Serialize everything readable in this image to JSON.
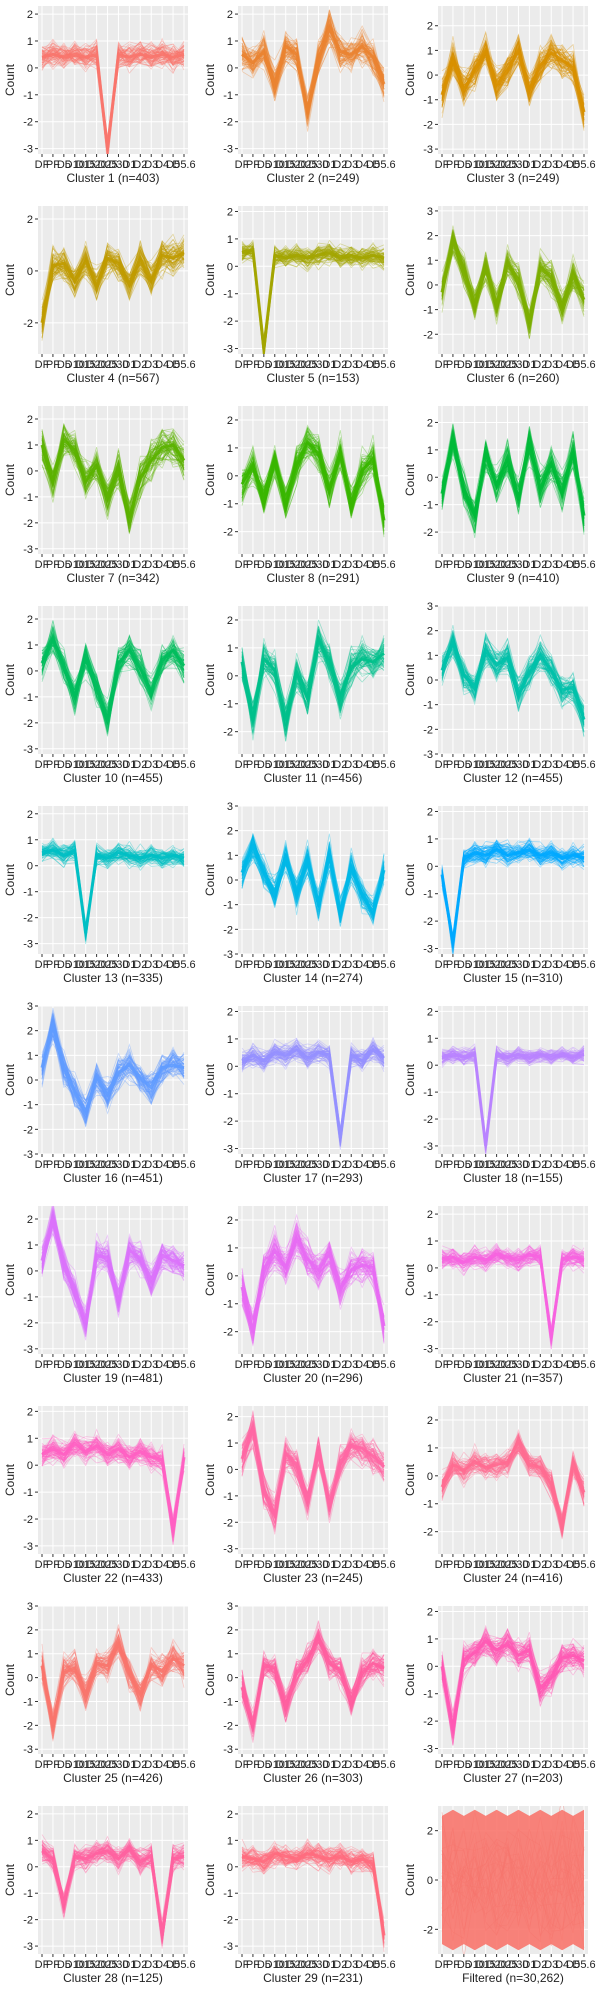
{
  "y_axis_label": "Count",
  "x_tick_labels": [
    "DF",
    "PF",
    "D5",
    "D10",
    "D15",
    "D20",
    "D25",
    "D30",
    "D1",
    "D2",
    "D3",
    "D4",
    "D5",
    "D5.6"
  ],
  "chart_data": [
    {
      "type": "line",
      "title": "Cluster 1 (n=403)",
      "ylabel": "Count",
      "color": "#F8766D",
      "ylim": [
        -3.2,
        2.3
      ],
      "yticks": [
        -3,
        -2,
        -1,
        0,
        1,
        2
      ],
      "profile": [
        0.4,
        0.5,
        0.4,
        0.5,
        0.4,
        0.5,
        -3.0,
        0.5,
        0.4,
        0.5,
        0.4,
        0.5,
        0.4,
        0.5
      ],
      "spread": 0.6
    },
    {
      "type": "line",
      "title": "Cluster 2 (n=249)",
      "ylabel": "Count",
      "color": "#EA8331",
      "ylim": [
        -3.2,
        2.3
      ],
      "yticks": [
        -3,
        -2,
        -1,
        0,
        1,
        2
      ],
      "profile": [
        0.5,
        0.2,
        0.6,
        -0.6,
        0.8,
        0.5,
        -1.6,
        0.3,
        1.5,
        0.6,
        0.5,
        0.8,
        0.4,
        -0.6
      ],
      "spread": 0.8
    },
    {
      "type": "line",
      "title": "Cluster 3 (n=249)",
      "ylabel": "Count",
      "color": "#D89000",
      "ylim": [
        -3.2,
        2.8
      ],
      "yticks": [
        -3,
        -2,
        -1,
        0,
        1,
        2
      ],
      "profile": [
        -0.8,
        0.6,
        -0.6,
        0.2,
        1.0,
        -0.4,
        0.2,
        1.0,
        -0.6,
        0.4,
        0.9,
        0.6,
        0.3,
        -1.5
      ],
      "spread": 0.9
    },
    {
      "type": "line",
      "title": "Cluster 4 (n=567)",
      "ylabel": "Count",
      "color": "#C09B00",
      "ylim": [
        -3.2,
        2.5
      ],
      "yticks": [
        -2,
        0,
        2
      ],
      "profile": [
        -2.0,
        0.2,
        0.3,
        -0.4,
        0.4,
        -0.6,
        0.5,
        0.3,
        -0.5,
        0.5,
        -0.4,
        0.6,
        0.5,
        0.7
      ],
      "spread": 0.8
    },
    {
      "type": "line",
      "title": "Cluster 5 (n=153)",
      "ylabel": "Count",
      "color": "#A3A500",
      "ylim": [
        -3.2,
        2.2
      ],
      "yticks": [
        -3,
        -2,
        -1,
        0,
        1,
        2
      ],
      "profile": [
        0.5,
        0.6,
        -3.0,
        0.4,
        0.3,
        0.4,
        0.3,
        0.4,
        0.5,
        0.3,
        0.4,
        0.3,
        0.4,
        0.3
      ],
      "spread": 0.5
    },
    {
      "type": "line",
      "title": "Cluster 6 (n=260)",
      "ylabel": "Count",
      "color": "#7CAE00",
      "ylim": [
        -2.8,
        3.2
      ],
      "yticks": [
        -2,
        -1,
        0,
        1,
        2,
        3
      ],
      "profile": [
        -0.3,
        1.8,
        0.6,
        -0.8,
        0.7,
        -0.8,
        0.9,
        0.2,
        -1.5,
        0.7,
        0.3,
        -0.9,
        0.4,
        -0.6
      ],
      "spread": 0.8
    },
    {
      "type": "line",
      "title": "Cluster 7 (n=342)",
      "ylabel": "Count",
      "color": "#5BB300",
      "ylim": [
        -3.2,
        2.5
      ],
      "yticks": [
        -3,
        -2,
        -1,
        0,
        1,
        2
      ],
      "profile": [
        1.0,
        -0.4,
        1.2,
        0.8,
        -0.4,
        0.2,
        -1.0,
        0.1,
        -1.8,
        -0.3,
        0.4,
        0.9,
        1.0,
        0.4
      ],
      "spread": 0.9
    },
    {
      "type": "line",
      "title": "Cluster 8 (n=291)",
      "ylabel": "Count",
      "color": "#39B600",
      "ylim": [
        -2.8,
        2.5
      ],
      "yticks": [
        -2,
        -1,
        0,
        1,
        2
      ],
      "profile": [
        -0.3,
        0.4,
        -0.8,
        0.5,
        -1.0,
        0.4,
        1.2,
        0.8,
        -0.5,
        0.8,
        -1.0,
        0.2,
        0.6,
        -1.6
      ],
      "spread": 0.8
    },
    {
      "type": "line",
      "title": "Cluster 9 (n=410)",
      "ylabel": "Count",
      "color": "#00BA38",
      "ylim": [
        -2.8,
        2.6
      ],
      "yticks": [
        -2,
        -1,
        0,
        1,
        2
      ],
      "profile": [
        -0.6,
        1.4,
        -0.5,
        -1.4,
        0.9,
        -0.3,
        0.7,
        -0.8,
        1.3,
        -0.4,
        0.5,
        -0.6,
        0.9,
        -1.4
      ],
      "spread": 0.8
    },
    {
      "type": "line",
      "title": "Cluster 10 (n=455)",
      "ylabel": "Count",
      "color": "#00BD5C",
      "ylim": [
        -3.2,
        2.5
      ],
      "yticks": [
        -3,
        -2,
        -1,
        0,
        1,
        2
      ],
      "profile": [
        0.3,
        1.2,
        0.2,
        -1.0,
        0.5,
        -0.6,
        -1.9,
        0.3,
        0.8,
        0.1,
        -0.8,
        0.4,
        0.8,
        0.2
      ],
      "spread": 0.8
    },
    {
      "type": "line",
      "title": "Cluster 11 (n=456)",
      "ylabel": "Count",
      "color": "#00C08B",
      "ylim": [
        -2.8,
        2.5
      ],
      "yticks": [
        -2,
        -1,
        0,
        1,
        2
      ],
      "profile": [
        0.5,
        -1.6,
        0.6,
        0.2,
        -1.6,
        0.1,
        -0.8,
        1.3,
        0.5,
        -0.8,
        0.3,
        0.6,
        0.5,
        0.8
      ],
      "spread": 0.8
    },
    {
      "type": "line",
      "title": "Cluster 12 (n=455)",
      "ylabel": "Count",
      "color": "#00C1AA",
      "ylim": [
        -3.0,
        3.0
      ],
      "yticks": [
        -3,
        -2,
        -1,
        0,
        1,
        2,
        3
      ],
      "profile": [
        0.4,
        1.5,
        0.2,
        -0.3,
        1.2,
        0.6,
        0.9,
        -0.6,
        0.3,
        1.0,
        0.4,
        -0.4,
        -0.3,
        -1.6
      ],
      "spread": 0.8
    },
    {
      "type": "line",
      "title": "Cluster 13 (n=335)",
      "ylabel": "Count",
      "color": "#00BFC4",
      "ylim": [
        -3.4,
        2.3
      ],
      "yticks": [
        -3,
        -2,
        -1,
        0,
        1,
        2
      ],
      "profile": [
        0.5,
        0.6,
        0.4,
        0.6,
        -2.6,
        0.4,
        0.3,
        0.5,
        0.4,
        0.3,
        0.4,
        0.3,
        0.4,
        0.3
      ],
      "spread": 0.5
    },
    {
      "type": "line",
      "title": "Cluster 14 (n=274)",
      "ylabel": "Count",
      "color": "#00B8E7",
      "ylim": [
        -3.0,
        3.0
      ],
      "yticks": [
        -3,
        -2,
        -1,
        0,
        1,
        2,
        3
      ],
      "profile": [
        0.3,
        1.4,
        0.3,
        -0.5,
        0.9,
        -0.5,
        0.8,
        -1.0,
        1.0,
        -1.4,
        0.5,
        -0.6,
        -1.3,
        0.4
      ],
      "spread": 0.8
    },
    {
      "type": "line",
      "title": "Cluster 15 (n=310)",
      "ylabel": "Count",
      "color": "#00A9FF",
      "ylim": [
        -3.2,
        2.2
      ],
      "yticks": [
        -3,
        -2,
        -1,
        0,
        1,
        2
      ],
      "profile": [
        -0.3,
        -2.8,
        0.3,
        0.5,
        0.4,
        0.6,
        0.4,
        0.5,
        0.6,
        0.4,
        0.5,
        0.3,
        0.4,
        0.3
      ],
      "spread": 0.5
    },
    {
      "type": "line",
      "title": "Cluster 16 (n=451)",
      "ylabel": "Count",
      "color": "#619CFF",
      "ylim": [
        -3.0,
        3.0
      ],
      "yticks": [
        -3,
        -2,
        -1,
        0,
        1,
        2,
        3
      ],
      "profile": [
        0.5,
        2.2,
        0.5,
        -0.5,
        -1.3,
        0.1,
        -0.6,
        0.3,
        0.6,
        0.1,
        -0.3,
        0.5,
        0.6,
        0.5
      ],
      "spread": 0.8
    },
    {
      "type": "line",
      "title": "Cluster 17 (n=293)",
      "ylabel": "Count",
      "color": "#9590FF",
      "ylim": [
        -3.2,
        2.2
      ],
      "yticks": [
        -3,
        -2,
        -1,
        0,
        1,
        2
      ],
      "profile": [
        0.2,
        0.4,
        0.2,
        0.5,
        0.4,
        0.6,
        0.3,
        0.5,
        0.4,
        -2.6,
        0.4,
        0.2,
        0.6,
        0.3
      ],
      "spread": 0.5
    },
    {
      "type": "line",
      "title": "Cluster 18 (n=155)",
      "ylabel": "Count",
      "color": "#B983FF",
      "ylim": [
        -3.3,
        2.2
      ],
      "yticks": [
        -3,
        -2,
        -1,
        0,
        1,
        2
      ],
      "profile": [
        0.3,
        0.4,
        0.3,
        0.4,
        -3.0,
        0.4,
        0.3,
        0.4,
        0.3,
        0.4,
        0.3,
        0.4,
        0.3,
        0.4
      ],
      "spread": 0.4
    },
    {
      "type": "line",
      "title": "Cluster 19 (n=481)",
      "ylabel": "Count",
      "color": "#DB72FB",
      "ylim": [
        -3.2,
        2.5
      ],
      "yticks": [
        -3,
        -2,
        -1,
        0,
        1,
        2
      ],
      "profile": [
        0.4,
        2.0,
        0.3,
        -0.8,
        -2.0,
        0.6,
        0.5,
        -1.2,
        0.8,
        0.5,
        -0.4,
        0.6,
        0.4,
        0.2
      ],
      "spread": 0.8
    },
    {
      "type": "line",
      "title": "Cluster 20 (n=296)",
      "ylabel": "Count",
      "color": "#E76BF3",
      "ylim": [
        -2.8,
        2.5
      ],
      "yticks": [
        -2,
        -1,
        0,
        1,
        2
      ],
      "profile": [
        -0.4,
        -2.0,
        0.2,
        0.9,
        0.3,
        1.3,
        0.6,
        0.2,
        0.8,
        -0.5,
        0.2,
        0.4,
        0.3,
        -1.8
      ],
      "spread": 0.8
    },
    {
      "type": "line",
      "title": "Cluster 21 (n=357)",
      "ylabel": "Count",
      "color": "#F763E0",
      "ylim": [
        -3.2,
        2.3
      ],
      "yticks": [
        -3,
        -2,
        -1,
        0,
        1,
        2
      ],
      "profile": [
        0.3,
        0.4,
        0.2,
        0.4,
        0.3,
        0.5,
        0.4,
        0.3,
        0.5,
        0.4,
        -2.6,
        0.3,
        0.4,
        0.3
      ],
      "spread": 0.5
    },
    {
      "type": "line",
      "title": "Cluster 22 (n=433)",
      "ylabel": "Count",
      "color": "#FF61C3",
      "ylim": [
        -3.3,
        2.2
      ],
      "yticks": [
        -3,
        -2,
        -1,
        0,
        1,
        2
      ],
      "profile": [
        0.4,
        0.6,
        0.4,
        0.8,
        0.5,
        0.7,
        0.4,
        0.6,
        0.3,
        0.5,
        0.3,
        0.2,
        -2.4,
        0.3
      ],
      "spread": 0.6
    },
    {
      "type": "line",
      "title": "Cluster 23 (n=245)",
      "ylabel": "Count",
      "color": "#FF67A4",
      "ylim": [
        -3.2,
        2.4
      ],
      "yticks": [
        -3,
        -2,
        -1,
        0,
        1,
        2
      ],
      "profile": [
        0.4,
        1.5,
        -0.8,
        -1.7,
        0.6,
        0.2,
        -1.2,
        0.7,
        -1.4,
        0.2,
        0.9,
        0.8,
        0.5,
        0.1
      ],
      "spread": 0.8
    },
    {
      "type": "line",
      "title": "Cluster 24 (n=416)",
      "ylabel": "Count",
      "color": "#FF6C91",
      "ylim": [
        -2.8,
        2.5
      ],
      "yticks": [
        -2,
        -1,
        0,
        1,
        2
      ],
      "profile": [
        -0.4,
        0.4,
        0.2,
        0.5,
        0.3,
        0.4,
        0.5,
        1.2,
        0.4,
        0.3,
        -0.3,
        -1.8,
        0.4,
        -0.6
      ],
      "spread": 0.6
    },
    {
      "type": "line",
      "title": "Cluster 25 (n=426)",
      "ylabel": "Count",
      "color": "#F8766D",
      "ylim": [
        -3.2,
        3.0
      ],
      "yticks": [
        -3,
        -2,
        -1,
        0,
        1,
        2,
        3
      ],
      "profile": [
        0.5,
        -2.0,
        0.2,
        0.4,
        -0.7,
        0.6,
        0.5,
        1.4,
        0.2,
        -0.7,
        0.5,
        0.3,
        0.8,
        0.5
      ],
      "spread": 0.8
    },
    {
      "type": "line",
      "title": "Cluster 26 (n=303)",
      "ylabel": "Count",
      "color": "#FF5FA0",
      "ylim": [
        -3.2,
        3.0
      ],
      "yticks": [
        -3,
        -2,
        -1,
        0,
        1,
        2,
        3
      ],
      "profile": [
        -0.4,
        -2.0,
        0.5,
        0.4,
        -1.2,
        0.2,
        0.7,
        1.7,
        0.6,
        0.3,
        -1.0,
        0.2,
        0.6,
        0.4
      ],
      "spread": 0.8
    },
    {
      "type": "line",
      "title": "Cluster 27 (n=203)",
      "ylabel": "Count",
      "color": "#FF59B4",
      "ylim": [
        -3.2,
        2.2
      ],
      "yticks": [
        -3,
        -2,
        -1,
        0,
        1,
        2
      ],
      "profile": [
        0.0,
        -2.3,
        0.2,
        0.5,
        0.9,
        0.6,
        0.8,
        0.4,
        0.6,
        -0.8,
        -0.4,
        0.3,
        0.4,
        0.2
      ],
      "spread": 0.7
    },
    {
      "type": "line",
      "title": "Cluster 28 (n=125)",
      "ylabel": "Count",
      "color": "#FF62A0",
      "ylim": [
        -3.3,
        2.3
      ],
      "yticks": [
        -3,
        -2,
        -1,
        0,
        1,
        2
      ],
      "profile": [
        0.6,
        0.3,
        -1.4,
        0.4,
        0.3,
        0.5,
        0.6,
        0.3,
        0.7,
        0.2,
        0.4,
        -2.6,
        0.3,
        0.4
      ],
      "spread": 0.6
    },
    {
      "type": "line",
      "title": "Cluster 29 (n=231)",
      "ylabel": "Count",
      "color": "#FF6C7E",
      "ylim": [
        -3.3,
        2.3
      ],
      "yticks": [
        -3,
        -2,
        -1,
        0,
        1,
        2
      ],
      "profile": [
        0.4,
        0.3,
        0.2,
        0.5,
        0.4,
        0.3,
        0.5,
        0.4,
        0.3,
        0.4,
        0.2,
        0.3,
        0.1,
        -2.6
      ],
      "spread": 0.6
    },
    {
      "type": "line",
      "title": "Filtered (n=30,262)",
      "ylabel": "Count",
      "color": "#F8766D",
      "ylim": [
        -3.0,
        3.0
      ],
      "yticks": [
        -2,
        0,
        2
      ],
      "profile": [
        0,
        0,
        0,
        0,
        0,
        0,
        0,
        0,
        0,
        0,
        0,
        0,
        0,
        0
      ],
      "spread": 2.6,
      "filled": true
    }
  ]
}
